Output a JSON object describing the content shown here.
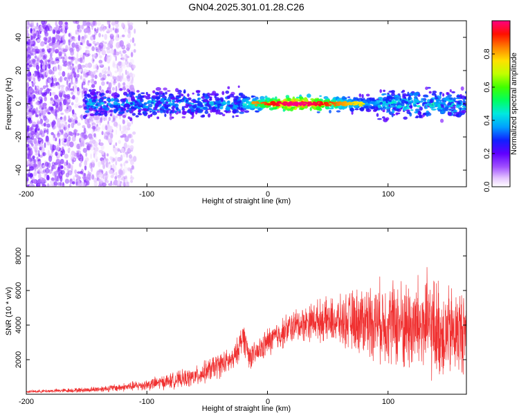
{
  "title": "GN04.2025.301.01.28.C26",
  "chart_data": [
    {
      "type": "heatmap",
      "xlabel": "Height of straight line (km)",
      "ylabel": "Frequency (Hz)",
      "xlim": [
        -200,
        165
      ],
      "ylim": [
        -50,
        50
      ],
      "xticks": [
        "-200",
        "-100",
        "0",
        "100"
      ],
      "yticks": [
        "-40",
        "-20",
        "0",
        "20",
        "40"
      ],
      "colorbar": {
        "label": "Normalized spectral amplitude",
        "range": [
          0,
          1
        ],
        "ticks": [
          "0.0",
          "0.2",
          "0.4",
          "0.6",
          "0.8"
        ]
      },
      "features": {
        "noise_region_x": [
          -200,
          -110
        ],
        "signal_band_x": [
          -152,
          165
        ],
        "signal_center_freq": 0,
        "peak_region_x": [
          -20,
          90
        ],
        "peak_amplitude": 1.0
      }
    },
    {
      "type": "line",
      "xlabel": "Height of straight line (km)",
      "ylabel": "SNR (10 * v/v)",
      "xlim": [
        -200,
        165
      ],
      "ylim": [
        0,
        9600
      ],
      "xticks": [
        "-200",
        "-100",
        "0",
        "100"
      ],
      "yticks": [
        "2000",
        "4000",
        "6000",
        "8000"
      ],
      "color": "#f03030",
      "envelope": {
        "x": [
          -200,
          -150,
          -120,
          -100,
          -60,
          -40,
          -28,
          -20,
          -15,
          -10,
          0,
          20,
          40,
          60,
          80,
          100,
          120,
          130,
          150,
          165
        ],
        "mean": [
          150,
          250,
          400,
          550,
          1000,
          1700,
          2000,
          3400,
          2200,
          2300,
          3000,
          3900,
          4300,
          4200,
          4300,
          4200,
          3900,
          4000,
          3500,
          3700
        ],
        "spread": [
          80,
          150,
          250,
          350,
          600,
          800,
          700,
          1000,
          800,
          700,
          900,
          1000,
          1200,
          1500,
          2200,
          2600,
          3000,
          3300,
          2900,
          2600
        ]
      }
    }
  ]
}
